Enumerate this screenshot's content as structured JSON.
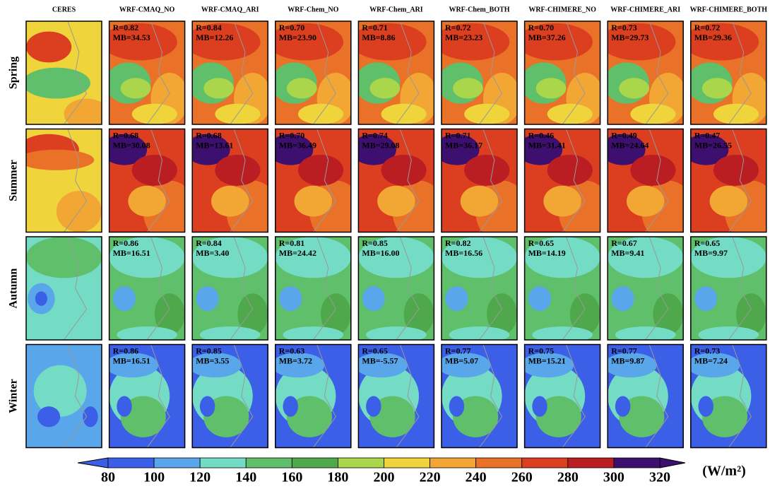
{
  "columns": [
    "CERES",
    "WRF-CMAQ_NO",
    "WRF-CMAQ_ARI",
    "WRF-Chem_NO",
    "WRF-Chem_ARI",
    "WRF-Chem_BOTH",
    "WRF-CHIMERE_NO",
    "WRF-CHIMERE_ARI",
    "WRF-CHIMERE_BOTH"
  ],
  "rows": [
    "Spring",
    "Summer",
    "Autumn",
    "Winter"
  ],
  "stats": [
    [
      {
        "R": "R=0.82",
        "MB": "MB=34.53"
      },
      {
        "R": "R=0.84",
        "MB": "MB=12.26"
      },
      {
        "R": "R=0.70",
        "MB": "MB=23.90"
      },
      {
        "R": "R=0.71",
        "MB": "MB=8.86"
      },
      {
        "R": "R=0.72",
        "MB": "MB=23.23"
      },
      {
        "R": "R=0.70",
        "MB": "MB=37.26"
      },
      {
        "R": "R=0.73",
        "MB": "MB=29.73"
      },
      {
        "R": "R=0.72",
        "MB": "MB=29.36"
      }
    ],
    [
      {
        "R": "R=0.68",
        "MB": "MB=30.08"
      },
      {
        "R": "R=0.68",
        "MB": "MB=13.61"
      },
      {
        "R": "R=0.70",
        "MB": "MB=36.49"
      },
      {
        "R": "R=0.74",
        "MB": "MB=29.08"
      },
      {
        "R": "R=0.71",
        "MB": "MB=36.17"
      },
      {
        "R": "R=0.46",
        "MB": "MB=31.41"
      },
      {
        "R": "R=0.49",
        "MB": "MB=24.64"
      },
      {
        "R": "R=0.47",
        "MB": "MB=26.55"
      }
    ],
    [
      {
        "R": "R=0.86",
        "MB": "MB=16.51"
      },
      {
        "R": "R=0.84",
        "MB": "MB=3.40"
      },
      {
        "R": "R=0.81",
        "MB": "MB=24.42"
      },
      {
        "R": "R=0.85",
        "MB": "MB=16.00"
      },
      {
        "R": "R=0.82",
        "MB": "MB=16.56"
      },
      {
        "R": "R=0.65",
        "MB": "MB=14.19"
      },
      {
        "R": "R=0.67",
        "MB": "MB=9.41"
      },
      {
        "R": "R=0.65",
        "MB": "MB=9.97"
      }
    ],
    [
      {
        "R": "R=0.86",
        "MB": "MB=16.51"
      },
      {
        "R": "R=0.85",
        "MB": "MB=3.55"
      },
      {
        "R": "R=0.63",
        "MB": "MB=3.72"
      },
      {
        "R": "R=0.65",
        "MB": "MB=-5.57"
      },
      {
        "R": "R=0.77",
        "MB": "MB=5.07"
      },
      {
        "R": "R=0.75",
        "MB": "MB=15.21"
      },
      {
        "R": "R=0.77",
        "MB": "MB=9.87"
      },
      {
        "R": "R=0.73",
        "MB": "MB=7.24"
      }
    ]
  ],
  "colorbar": {
    "ticks": [
      80,
      100,
      120,
      140,
      160,
      180,
      200,
      220,
      240,
      260,
      280,
      300,
      320
    ],
    "colors": [
      "#3b5fe6",
      "#5aa6ea",
      "#74dcc4",
      "#5fbf6a",
      "#4fa84c",
      "#a9d64a",
      "#f0d43c",
      "#f2a634",
      "#ea7228",
      "#dc3e20",
      "#bb1e22",
      "#3d0f6e"
    ],
    "unit": "(W/m²)"
  }
}
